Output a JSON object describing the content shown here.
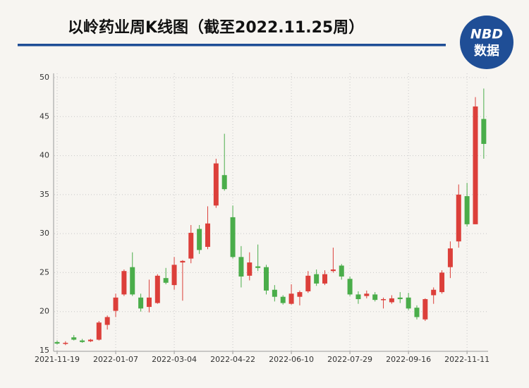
{
  "chart_data": {
    "type": "candlestick",
    "title": "以岭药业周K线图（截至2022.11.25周）",
    "logo": {
      "top": "NBD",
      "bottom": "数据"
    },
    "categories": [
      "2021-11-19",
      null,
      null,
      null,
      null,
      null,
      null,
      "2022-01-07",
      null,
      null,
      null,
      null,
      null,
      null,
      "2022-03-04",
      null,
      null,
      null,
      null,
      null,
      null,
      "2022-04-22",
      null,
      null,
      null,
      null,
      null,
      null,
      "2022-06-10",
      null,
      null,
      null,
      null,
      null,
      null,
      "2022-07-29",
      null,
      null,
      null,
      null,
      null,
      null,
      "2022-09-16",
      null,
      null,
      null,
      null,
      null,
      null,
      "2022-11-11",
      null,
      null
    ],
    "open": [
      16.1,
      15.9,
      16.7,
      16.3,
      16.2,
      16.4,
      18.3,
      20.1,
      22.2,
      25.7,
      21.8,
      20.6,
      21.1,
      24.3,
      23.4,
      26.3,
      26.8,
      30.6,
      28.3,
      33.6,
      37.5,
      32.1,
      27.0,
      24.6,
      25.8,
      25.7,
      22.8,
      21.9,
      21.0,
      21.9,
      22.6,
      24.8,
      23.6,
      25.2,
      25.9,
      24.2,
      22.2,
      22.0,
      22.2,
      21.5,
      21.2,
      21.8,
      21.8,
      20.5,
      19.0,
      22.1,
      22.5,
      25.7,
      29.0,
      34.8,
      31.2,
      44.7
    ],
    "high": [
      16.3,
      16.2,
      17.0,
      16.5,
      16.5,
      18.8,
      19.5,
      22.3,
      25.4,
      27.6,
      22.3,
      24.1,
      24.8,
      25.6,
      27.0,
      26.6,
      31.1,
      31.1,
      33.5,
      39.6,
      42.8,
      33.6,
      28.4,
      27.6,
      28.6,
      26.0,
      23.4,
      22.1,
      23.5,
      22.7,
      25.2,
      25.4,
      25.3,
      28.2,
      26.1,
      24.5,
      22.6,
      22.7,
      22.5,
      21.8,
      22.1,
      22.5,
      22.4,
      20.8,
      21.7,
      23.1,
      25.3,
      29.0,
      36.3,
      36.5,
      47.5,
      48.6
    ],
    "low": [
      15.8,
      15.7,
      16.3,
      16.0,
      16.1,
      16.3,
      17.7,
      19.3,
      22.0,
      22.0,
      20.0,
      19.9,
      21.0,
      23.5,
      22.8,
      21.4,
      26.2,
      27.4,
      28.0,
      33.3,
      35.5,
      26.8,
      23.1,
      24.0,
      25.2,
      22.2,
      21.3,
      20.9,
      20.9,
      20.8,
      22.4,
      23.3,
      23.4,
      25.0,
      24.1,
      22.0,
      21.0,
      21.7,
      21.3,
      20.4,
      21.0,
      21.1,
      20.2,
      19.0,
      18.8,
      21.0,
      22.3,
      24.3,
      28.2,
      30.9,
      31.2,
      39.6
    ],
    "close": [
      15.9,
      16.0,
      16.4,
      16.1,
      16.4,
      18.6,
      19.3,
      21.8,
      25.2,
      22.2,
      20.4,
      21.8,
      24.6,
      23.7,
      26.0,
      26.5,
      30.1,
      27.9,
      31.3,
      39.0,
      35.7,
      27.0,
      24.5,
      26.3,
      25.6,
      22.7,
      21.9,
      21.1,
      22.3,
      22.5,
      24.6,
      23.6,
      24.8,
      25.4,
      24.5,
      22.2,
      21.6,
      22.3,
      21.5,
      21.6,
      21.7,
      21.6,
      20.4,
      19.3,
      21.6,
      22.8,
      25.0,
      28.1,
      35.0,
      31.2,
      46.3,
      41.5
    ],
    "up_color": "#dc3f3a",
    "down_color": "#4aad4a",
    "ylim": [
      15,
      50
    ],
    "yticks": [
      15,
      20,
      25,
      30,
      35,
      40,
      45,
      50
    ],
    "grid": true
  }
}
